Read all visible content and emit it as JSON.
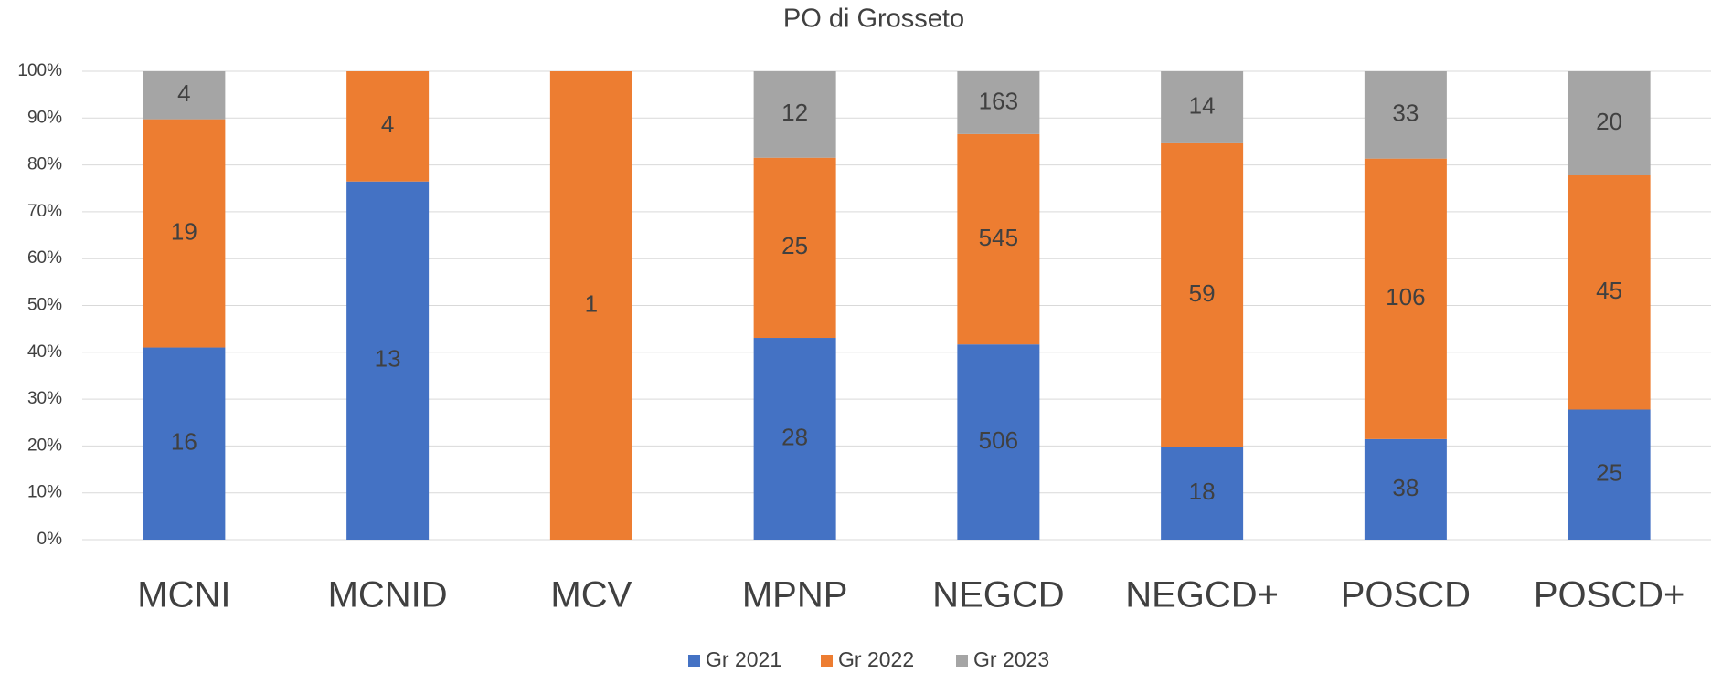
{
  "chart_data": {
    "type": "stacked_bar_100",
    "title": "PO di Grosseto",
    "categories": [
      "MCNI",
      "MCNID",
      "MCV",
      "MPNP",
      "NEGCD",
      "NEGCD+",
      "POSCD",
      "POSCD+"
    ],
    "series": [
      {
        "name": "Gr 2021",
        "color": "#4472c4",
        "values": [
          16,
          13,
          null,
          28,
          506,
          18,
          38,
          25
        ]
      },
      {
        "name": "Gr 2022",
        "color": "#ed7d31",
        "values": [
          19,
          4,
          1,
          25,
          545,
          59,
          106,
          45
        ]
      },
      {
        "name": "Gr 2023",
        "color": "#a5a5a5",
        "values": [
          4,
          null,
          null,
          12,
          163,
          14,
          33,
          20
        ]
      }
    ],
    "ylim": [
      0,
      100
    ],
    "yticks": [
      {
        "value": 0,
        "label": "0%"
      },
      {
        "value": 10,
        "label": "10%"
      },
      {
        "value": 20,
        "label": "20%"
      },
      {
        "value": 30,
        "label": "30%"
      },
      {
        "value": 40,
        "label": "40%"
      },
      {
        "value": 50,
        "label": "50%"
      },
      {
        "value": 60,
        "label": "60%"
      },
      {
        "value": 70,
        "label": "70%"
      },
      {
        "value": 80,
        "label": "80%"
      },
      {
        "value": 90,
        "label": "90%"
      },
      {
        "value": 100,
        "label": "100%"
      }
    ],
    "grid": true,
    "legend": "bottom"
  }
}
